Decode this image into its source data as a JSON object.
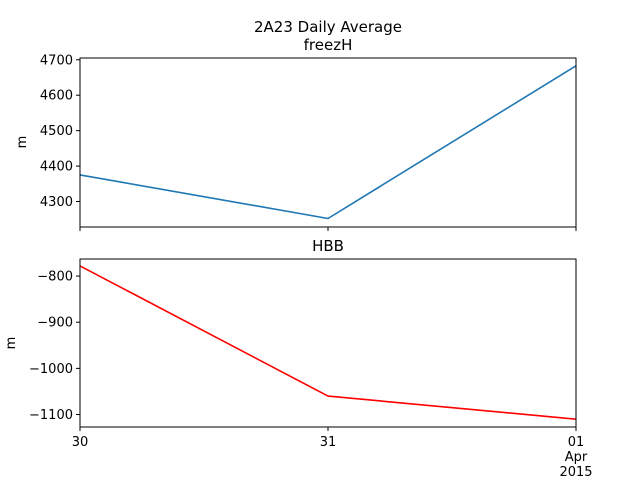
{
  "figure": {
    "title": "2A23 Daily Average"
  },
  "chart_data": [
    {
      "type": "line",
      "title": "freezH",
      "xlabel": "",
      "ylabel": "m",
      "color": "#1f77b4",
      "x": [
        "2015-03-30",
        "2015-03-31",
        "2015-04-01"
      ],
      "x_tick_labels": [
        "30",
        "31",
        "01\nApr\n2015"
      ],
      "x_tick_labels_shown": false,
      "values": [
        4375,
        4252,
        4683
      ],
      "ylim": [
        4228,
        4705
      ],
      "yticks": [
        4300,
        4400,
        4500,
        4600,
        4700
      ],
      "grid": false
    },
    {
      "type": "line",
      "title": "HBB",
      "xlabel": "",
      "ylabel": "m",
      "color": "#ff0000",
      "x": [
        "2015-03-30",
        "2015-03-31",
        "2015-04-01"
      ],
      "x_tick_labels": [
        "30",
        "31",
        "01\nApr\n2015"
      ],
      "x_tick_labels_shown": true,
      "values": [
        -778,
        -1060,
        -1110
      ],
      "ylim": [
        -1127,
        -763
      ],
      "yticks": [
        -800,
        -900,
        -1000,
        -1100
      ],
      "grid": false
    }
  ]
}
